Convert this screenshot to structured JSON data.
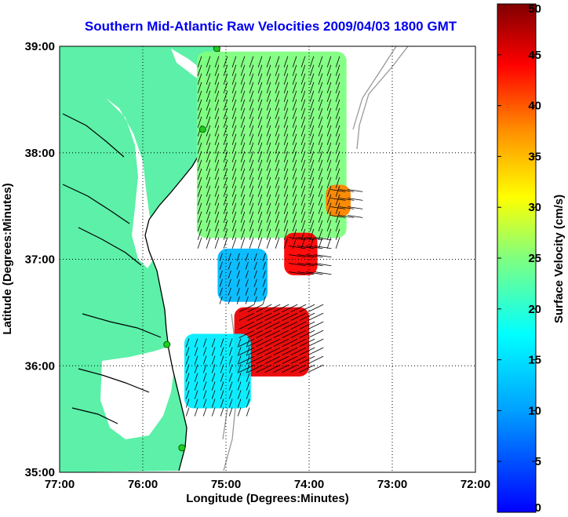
{
  "chart_data": {
    "type": "heatmap",
    "title": "Southern Mid-Atlantic Raw Velocities 2009/04/03 1800 GMT",
    "xlabel": "Longitude (Degrees:Minutes)",
    "ylabel": "Latitude (Degrees:Minutes)",
    "xlim": [
      -77,
      -72
    ],
    "ylim": [
      35,
      39
    ],
    "x_ticks": [
      -77,
      -76,
      -75,
      -74,
      -73,
      -72
    ],
    "x_tick_labels": [
      "77:00",
      "76:00",
      "75:00",
      "74:00",
      "73:00",
      "72:00"
    ],
    "y_ticks": [
      35,
      36,
      37,
      38,
      39
    ],
    "y_tick_labels": [
      "35:00",
      "36:00",
      "37:00",
      "38:00",
      "39:00"
    ],
    "grid": true,
    "colorbar": {
      "label": "Surface Velocity (cm/s)",
      "range": [
        0,
        50
      ],
      "ticks": [
        0,
        5,
        10,
        15,
        20,
        25,
        30,
        35,
        40,
        45,
        50
      ],
      "colormap": "jet"
    },
    "land_color": "#5cf0a8",
    "stations": [
      {
        "lon": -75.11,
        "lat": 38.98
      },
      {
        "lon": -75.28,
        "lat": 38.22
      },
      {
        "lon": -75.71,
        "lat": 36.2
      },
      {
        "lon": -75.53,
        "lat": 35.23
      }
    ],
    "velocity_regions": [
      {
        "name": "delmarva-shelf",
        "mean_speed_cm_s": 25,
        "lon": [
          -75.35,
          -73.55
        ],
        "lat": [
          37.2,
          38.95
        ]
      },
      {
        "name": "hotspot-37n",
        "mean_speed_cm_s": 44,
        "lon": [
          -74.3,
          -73.9
        ],
        "lat": [
          36.85,
          37.25
        ]
      },
      {
        "name": "hotspot-37-5n",
        "mean_speed_cm_s": 38,
        "lon": [
          -73.8,
          -73.5
        ],
        "lat": [
          37.4,
          37.7
        ]
      },
      {
        "name": "chesapeake-mouth",
        "mean_speed_cm_s": 12,
        "lon": [
          -75.1,
          -74.5
        ],
        "lat": [
          36.6,
          37.1
        ]
      },
      {
        "name": "hatteras-jet",
        "mean_speed_cm_s": 45,
        "lon": [
          -74.9,
          -74.0
        ],
        "lat": [
          35.9,
          36.55
        ]
      },
      {
        "name": "outer-banks-shelf",
        "mean_speed_cm_s": 16,
        "lon": [
          -75.5,
          -74.7
        ],
        "lat": [
          35.6,
          36.3
        ]
      }
    ]
  }
}
